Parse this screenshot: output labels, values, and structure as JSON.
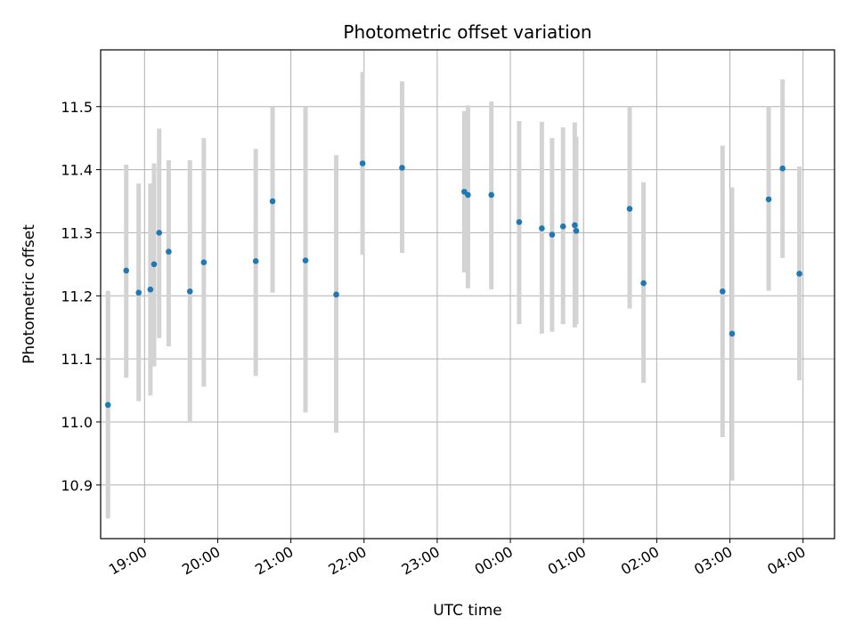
{
  "chart_data": {
    "type": "scatter",
    "title": "Photometric offset variation",
    "xlabel": "UTC time",
    "ylabel": "Photometric offset",
    "x_axis_kind": "time",
    "x_tick_labels": [
      "19:00",
      "20:00",
      "21:00",
      "22:00",
      "23:00",
      "00:00",
      "01:00",
      "02:00",
      "03:00",
      "04:00"
    ],
    "x_tick_hours": [
      19,
      20,
      21,
      22,
      23,
      24,
      25,
      26,
      27,
      28
    ],
    "xlim_hours": [
      18.4,
      28.43
    ],
    "ylim": [
      10.815,
      11.59
    ],
    "y_ticks": [
      10.9,
      11.0,
      11.1,
      11.2,
      11.3,
      11.4,
      11.5
    ],
    "y_tick_labels": [
      "10.9",
      "11.0",
      "11.1",
      "11.2",
      "11.3",
      "11.4",
      "11.5"
    ],
    "grid": true,
    "point_color": "#1f77b4",
    "errorbar_color": "#d3d3d3",
    "series": [
      {
        "x_time": [
          "18:30",
          "18:45",
          "18:55",
          "19:05",
          "19:08",
          "19:12",
          "19:20",
          "19:37",
          "19:49",
          "20:31",
          "20:45",
          "21:12",
          "21:37",
          "21:59",
          "22:31",
          "23:22",
          "23:25",
          "23:44",
          "00:07",
          "00:26",
          "00:34",
          "00:43",
          "00:53",
          "00:54",
          "01:38",
          "01:49",
          "02:54",
          "03:02",
          "03:32",
          "03:43",
          "03:57"
        ],
        "x_hours": [
          18.5,
          18.75,
          18.92,
          19.08,
          19.13,
          19.2,
          19.33,
          19.62,
          19.81,
          20.52,
          20.75,
          21.2,
          21.62,
          21.98,
          22.52,
          23.37,
          23.42,
          23.74,
          24.12,
          24.43,
          24.57,
          24.72,
          24.88,
          24.9,
          25.63,
          25.82,
          26.9,
          27.03,
          27.53,
          27.72,
          27.95
        ],
        "y": [
          11.027,
          11.24,
          11.205,
          11.21,
          11.25,
          11.3,
          11.27,
          11.207,
          11.253,
          11.255,
          11.35,
          11.256,
          11.202,
          11.41,
          11.403,
          11.365,
          11.36,
          11.36,
          11.317,
          11.307,
          11.297,
          11.31,
          11.312,
          11.303,
          11.338,
          11.22,
          11.207,
          11.14,
          11.353,
          11.402,
          11.235
        ],
        "y_err_low": [
          10.847,
          11.07,
          11.033,
          11.042,
          11.088,
          11.133,
          11.12,
          11.0,
          11.056,
          11.073,
          11.205,
          11.015,
          10.983,
          11.265,
          11.268,
          11.237,
          11.212,
          11.21,
          11.155,
          11.14,
          11.143,
          11.155,
          11.15,
          11.155,
          11.18,
          11.062,
          10.976,
          10.907,
          11.208,
          11.26,
          11.066
        ],
        "y_err_high": [
          11.208,
          11.408,
          11.378,
          11.378,
          11.41,
          11.465,
          11.415,
          11.415,
          11.45,
          11.433,
          11.5,
          11.5,
          11.423,
          11.555,
          11.54,
          11.493,
          11.502,
          11.508,
          11.477,
          11.476,
          11.45,
          11.467,
          11.475,
          11.452,
          11.5,
          11.38,
          11.438,
          11.372,
          11.5,
          11.543,
          11.405
        ]
      }
    ]
  }
}
